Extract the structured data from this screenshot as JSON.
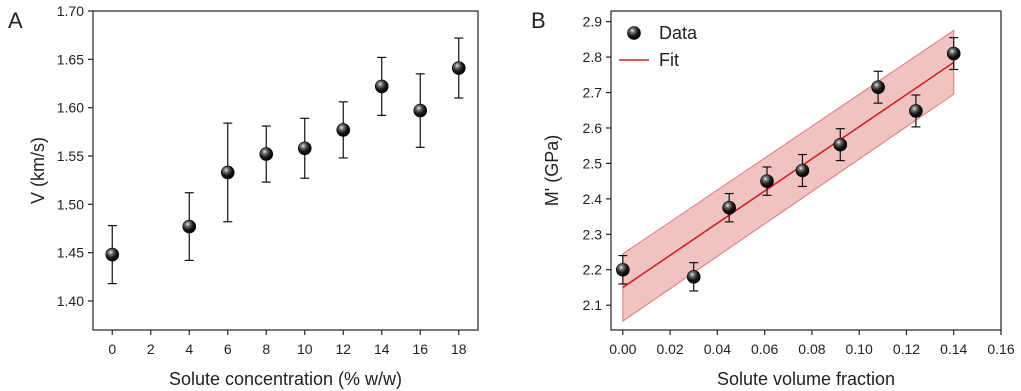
{
  "figure": {
    "panels": [
      "A",
      "B"
    ]
  },
  "chart_data": [
    {
      "panel": "A",
      "type": "scatter",
      "xlabel": "Solute concentration (% w/w)",
      "ylabel": "V (km/s)",
      "xlim": [
        -1,
        19
      ],
      "ylim": [
        1.37,
        1.7
      ],
      "xticks": [
        "0",
        "2",
        "4",
        "6",
        "8",
        "10",
        "12",
        "14",
        "16",
        "18"
      ],
      "yticks": [
        "1.40",
        "1.45",
        "1.50",
        "1.55",
        "1.60",
        "1.65",
        "1.70"
      ],
      "grid": false,
      "legend": null,
      "series": [
        {
          "x": [
            0,
            4,
            6,
            8,
            10,
            12,
            14,
            16,
            18
          ],
          "y": [
            1.448,
            1.477,
            1.533,
            1.552,
            1.558,
            1.577,
            1.622,
            1.597,
            1.641
          ],
          "yerr": [
            0.03,
            0.035,
            0.051,
            0.029,
            0.031,
            0.029,
            0.03,
            0.038,
            0.031
          ],
          "marker_color": "#111111"
        }
      ]
    },
    {
      "panel": "B",
      "type": "scatter",
      "xlabel": "Solute volume fraction",
      "ylabel": "M' (GPa)",
      "xlim": [
        -0.005,
        0.16
      ],
      "ylim": [
        2.03,
        2.93
      ],
      "xticks": [
        "0.00",
        "0.02",
        "0.04",
        "0.06",
        "0.08",
        "0.10",
        "0.12",
        "0.14",
        "0.16"
      ],
      "yticks": [
        "2.1",
        "2.2",
        "2.3",
        "2.4",
        "2.5",
        "2.6",
        "2.7",
        "2.8",
        "2.9"
      ],
      "grid": false,
      "legend": "top-left",
      "series": [
        {
          "name": "Data",
          "x": [
            0.0,
            0.03,
            0.045,
            0.061,
            0.076,
            0.092,
            0.108,
            0.124,
            0.14
          ],
          "y": [
            2.2,
            2.18,
            2.375,
            2.45,
            2.48,
            2.553,
            2.715,
            2.648,
            2.81
          ],
          "yerr": [
            0.04,
            0.04,
            0.04,
            0.04,
            0.045,
            0.045,
            0.045,
            0.045,
            0.045
          ],
          "marker_color": "#111111"
        },
        {
          "name": "Fit",
          "type": "line",
          "x": [
            0.0,
            0.14
          ],
          "y": [
            2.15,
            2.785
          ],
          "band_lower": [
            2.055,
            2.695
          ],
          "band_upper": [
            2.245,
            2.875
          ],
          "line_color": "#d42020",
          "band_color": "#e07878"
        }
      ]
    }
  ]
}
